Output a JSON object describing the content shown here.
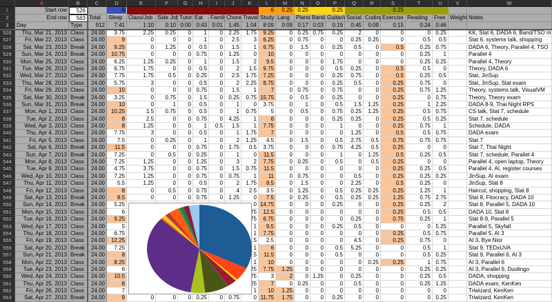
{
  "app": {
    "kind": "spreadsheet-time-log"
  },
  "column_letters": [
    "A",
    "B",
    "C",
    "D",
    "E",
    "F",
    "G",
    "H",
    "I",
    "J",
    "K",
    "L",
    "M",
    "N",
    "O",
    "P",
    "Q",
    "R",
    "S",
    "T",
    "U",
    "V",
    "W"
  ],
  "selected_column": "A",
  "selected_row_header": "1",
  "controls": {
    "start_row_label": "Start row",
    "start_row_value": "526",
    "end_row_label": "End row",
    "end_row_value": "563"
  },
  "thresholds": {
    "sleep": "8",
    "study": "6",
    "lang": "0.25",
    "piano": "0.25",
    "guitar": "0.25",
    "exercise": "0.25",
    "numeric": {
      "D": 8,
      "L": 6,
      "M": 0.25,
      "S": 0.25
    }
  },
  "band_colors": {
    "sleep_blue": "#3c50c0",
    "dark_red": "#8d0a0a",
    "orange": "#ff9d09",
    "yellow": "#ffd60a",
    "olive": "#9c9e06",
    "highlight_orange": "#f9c499"
  },
  "header_row": {
    "day": "Day",
    "type": "Type",
    "labels": [
      "Total",
      "Sleep",
      "Class/Job",
      "Side Job",
      "Tutor",
      "Eat",
      "Family",
      "Chores",
      "Travel",
      "Study",
      "Lang",
      "Piano",
      "Band",
      "Guitar/etc",
      "Social",
      "Coding",
      "Exercise",
      "Reading",
      "Free",
      "Weight",
      "Notes"
    ]
  },
  "averages_row": {
    "values": [
      "912",
      "7:41",
      "1:10",
      "0:10",
      "0:00",
      "0:43",
      "0:01",
      "1:45",
      "1:04",
      "8:09",
      "0:09",
      "0:17",
      "0:03",
      "0:19",
      "0:45",
      "0:09",
      "0:15",
      "0:24",
      "0:46",
      "",
      ""
    ]
  },
  "rows": [
    {
      "n": "526",
      "day": "Thu, Mar 21, 2013",
      "type": "Class",
      "v": [
        "24.00",
        "3.75",
        "2.25",
        "0.25",
        "0",
        "1",
        "0",
        "2.25",
        "1.75",
        "9.25",
        "0",
        "0.25",
        "0.75",
        "0.25",
        "2",
        "0",
        "0",
        "0",
        "0.25",
        ""
      ],
      "notes": "KK, Stat 6, DADA 6, Band/TSO mtg"
    },
    {
      "n": "527",
      "day": "Fri, Mar 22, 2013",
      "type": "Class",
      "v": [
        "24.00",
        "9",
        "0",
        "0",
        "0",
        "1",
        "0",
        "2.5",
        "3",
        "6.25",
        "0",
        "0.75",
        "0",
        "0",
        "0.25",
        "0.25",
        "0",
        "0.5",
        "0.5",
        ""
      ],
      "notes": "Stat 6, systems talk, shopping"
    },
    {
      "n": "528",
      "day": "Sat, Mar 23, 2013",
      "type": "Break",
      "v": [
        "24.00",
        "9.25",
        "0",
        "1.25",
        "0",
        "0.5",
        "0",
        "1.5",
        "1",
        "6.75",
        "0",
        "1.5",
        "0",
        "0.25",
        "0.5",
        "0",
        "0.5",
        "0.25",
        "0.75",
        ""
      ],
      "notes": "DADA 6, Theory, Parallel 4, TSO"
    },
    {
      "n": "529",
      "day": "Sun, Mar 24, 2013",
      "type": "Break",
      "v": [
        "24.00",
        "10.75",
        "0",
        "0",
        "0",
        "0.75",
        "0",
        "1.25",
        "0",
        "10",
        "0",
        "0",
        "0",
        "0",
        "0",
        "0",
        "0",
        "0.25",
        "1",
        ""
      ],
      "notes": "Parallel 4"
    },
    {
      "n": "530",
      "day": "Mon, Mar 25, 2013",
      "type": "Class",
      "v": [
        "24.00",
        "6.25",
        "1.25",
        "0.25",
        "0",
        "1",
        "0",
        "1.5",
        "2",
        "9.5",
        "0",
        "0",
        "0",
        "1.75",
        "0",
        "0",
        "0",
        "0.25",
        "0.25",
        ""
      ],
      "notes": "Parallel 4, Theory"
    },
    {
      "n": "531",
      "day": "Tue, Mar 26, 2013",
      "type": "Class",
      "v": [
        "24.00",
        "6.75",
        "1.75",
        "0",
        "0",
        "0.5",
        "0",
        "2",
        "1.5",
        "9.75",
        "0",
        "0",
        "0",
        "0.5",
        "0.25",
        "0",
        "0.5",
        "0.5",
        "0",
        ""
      ],
      "notes": "Theory, DADA 6"
    },
    {
      "n": "532",
      "day": "Wed, Mar 27, 2013",
      "type": "Class",
      "v": [
        "24.00",
        "7.75",
        "1.75",
        "0.5",
        "0",
        "0.25",
        "0",
        "2.5",
        "1.75",
        "7.25",
        "0",
        "0",
        "0",
        "0.25",
        "0.75",
        "0",
        "0.5",
        "0.25",
        "0.5",
        ""
      ],
      "notes": "Stat, JinSup"
    },
    {
      "n": "533",
      "day": "Thu, Mar 28, 2013",
      "type": "Class",
      "v": [
        "24.00",
        "5.75",
        "3",
        "0",
        "0",
        "0.5",
        "0",
        "2",
        "2.25",
        "8.75",
        "0",
        "0",
        "0",
        "0.25",
        "0.5",
        "0",
        "0.25",
        "0.75",
        "0",
        ""
      ],
      "notes": "Stat, JinSup, Stat exam"
    },
    {
      "n": "534",
      "day": "Fri, Mar 29, 2013",
      "type": "Class",
      "v": [
        "24.00",
        "10",
        "0",
        "0",
        "0",
        "0.75",
        "0",
        "1.5",
        "1",
        "7",
        "0",
        "0.75",
        "0",
        "0.75",
        "0",
        "0",
        "0.25",
        "0.75",
        "1.25",
        ""
      ],
      "notes": "Theory, systems talk, VisualVM"
    },
    {
      "n": "535",
      "day": "Sat, Mar 30, 2013",
      "type": "Break",
      "v": [
        "24.00",
        "3.25",
        "0",
        "0.75",
        "0",
        "1.5",
        "0",
        "0.25",
        "0.75",
        "15.75",
        "0",
        "0.5",
        "0",
        "0.25",
        "0",
        "0",
        "0.25",
        "0",
        "0.75",
        ""
      ],
      "notes": "Theory, Theory exam"
    },
    {
      "n": "536",
      "day": "Sun, Mar 31, 2013",
      "type": "Break",
      "v": [
        "24.00",
        "10",
        "0",
        "1",
        "0",
        "0.5",
        "0",
        "1",
        "0",
        "3.75",
        "0",
        "1",
        "0",
        "0.5",
        "1.5",
        "1.25",
        "0.25",
        "1",
        "2.25",
        ""
      ],
      "notes": "DADA 8-9, Thai Night RPS"
    },
    {
      "n": "537",
      "day": "Mon, Apr 1, 2013",
      "type": "Class",
      "v": [
        "24.00",
        "10.25",
        "1.5",
        "0.75",
        "0",
        "0.5",
        "0",
        "1",
        "0.75",
        "5",
        "0",
        "0.5",
        "0",
        "0.75",
        "0.25",
        "1.25",
        "0.25",
        "0.5",
        "0.75",
        ""
      ],
      "notes": "CS talk, Stat 7, schedule"
    },
    {
      "n": "538",
      "day": "Tue, Apr 2, 2013",
      "type": "Class",
      "v": [
        "24.00",
        "8",
        "2.5",
        "0",
        "0",
        "0.75",
        "0",
        "4.25",
        "1",
        "6",
        "0",
        "0",
        "0",
        "0.25",
        "0.25",
        "0",
        "0.25",
        "0.5",
        "0.25",
        ""
      ],
      "notes": "Stat 7, schedule"
    },
    {
      "n": "539",
      "day": "Wed, Apr 3, 2013",
      "type": "Class",
      "v": [
        "24.00",
        "8",
        "1.25",
        "0",
        "0",
        "1",
        "0.5",
        "1.5",
        "1",
        "7.75",
        "0",
        "0",
        "0",
        "1",
        "0",
        "0",
        "0.25",
        "0.75",
        "1",
        ""
      ],
      "notes": "Schedule, DADA"
    },
    {
      "n": "540",
      "day": "Thu, Apr 4, 2013",
      "type": "Class",
      "v": [
        "24.00",
        "7.75",
        "3",
        "0",
        "0",
        "0.5",
        "0",
        "1",
        "1.75",
        "7",
        "0",
        "0",
        "0",
        "0",
        "1.25",
        "0",
        "0.5",
        "0.5",
        "0.75",
        ""
      ],
      "notes": "DADA exam"
    },
    {
      "n": "541",
      "day": "Fri, Apr 5, 2013",
      "type": "Class",
      "v": [
        "24.00",
        "7.5",
        "0",
        "0.25",
        "0",
        "1",
        "0",
        "2",
        "1.25",
        "4.5",
        "0",
        "1.5",
        "0",
        "0.5",
        "2.75",
        "0.5",
        "0.75",
        "0.75",
        "0.75",
        ""
      ],
      "notes": "Stat 7"
    },
    {
      "n": "542",
      "day": "Sat, Apr 6, 2013",
      "type": "Break",
      "v": [
        "24.00",
        "11.5",
        "0",
        "0",
        "0",
        "0.75",
        "0",
        "1.75",
        "0.5",
        "3.75",
        "0",
        "0",
        "0",
        "0.75",
        "4.25",
        "0.5",
        "0.25",
        "0",
        "0",
        ""
      ],
      "notes": "Stat 7, Thai Night"
    },
    {
      "n": "543",
      "day": "Sun, Apr 7, 2013",
      "type": "Break",
      "v": [
        "24.00",
        "7.25",
        "0",
        "0.5",
        "0",
        "0.25",
        "0",
        "1",
        "0",
        "11.5",
        "0",
        "0",
        "0",
        "1",
        "0",
        "1.25",
        "0.5",
        "0.25",
        "0.5",
        ""
      ],
      "notes": "Stat 7, schedule, Parallel 4"
    },
    {
      "n": "544",
      "day": "Mon, Apr 8, 2013",
      "type": "Class",
      "v": [
        "24.00",
        "7.25",
        "1.25",
        "0",
        "0",
        "1.25",
        "0",
        "3",
        "2",
        "7.75",
        "0",
        "0.25",
        "0",
        "0.5",
        "0",
        "0.5",
        "0.25",
        "0",
        "0",
        ""
      ],
      "notes": "Parallel 4, open laptop, Theory"
    },
    {
      "n": "545",
      "day": "Tue, Apr 9, 2013",
      "type": "Class",
      "v": [
        "24.00",
        "4.75",
        "3.75",
        "0",
        "0",
        "0.75",
        "0",
        "1.5",
        "0.75",
        "11.5",
        "0",
        "0",
        "0",
        "0",
        "0",
        "0",
        "0.25",
        "0.25",
        "0.5",
        ""
      ],
      "notes": "Parallel 4, AI, register courses"
    },
    {
      "n": "546",
      "day": "Wed, Apr 10, 2013",
      "type": "Class",
      "v": [
        "24.00",
        "7.25",
        "1.25",
        "0",
        "0",
        "0.75",
        "0",
        "0.75",
        "1",
        "11",
        "0",
        "0.75",
        "0",
        "0",
        "0.5",
        "0",
        "0.25",
        "0.25",
        "0.25",
        ""
      ],
      "notes": "JinSup, AI exam"
    },
    {
      "n": "547",
      "day": "Thu, Apr 11, 2013",
      "type": "Class",
      "v": [
        "24.00",
        "5.5",
        "1.25",
        "0",
        "0",
        "0.5",
        "0",
        "2",
        "1.75",
        "8.5",
        "0",
        "1.5",
        "0",
        "0",
        "2.25",
        "0",
        "0.5",
        "0.25",
        "0",
        ""
      ],
      "notes": "JinSup, Stat 8"
    },
    {
      "n": "548",
      "day": "Fri, Apr 12, 2013",
      "type": "Class",
      "v": [
        "24.00",
        "8",
        "0",
        "0.5",
        "0",
        "0.75",
        "0",
        "4",
        "2.5",
        "3.5",
        "0",
        "1.25",
        "0",
        "0.5",
        "0.25",
        "0.25",
        "0.25",
        "1.25",
        "1",
        ""
      ],
      "notes": "Haircut, shopping, Stat 8"
    },
    {
      "n": "549",
      "day": "Sat, Apr 13, 2013",
      "type": "Break",
      "v": [
        "24.00",
        "8.5",
        "0",
        "0",
        "0",
        "0.75",
        "0",
        "1.25",
        "0",
        "7.5",
        "0",
        "0.25",
        "0",
        "0.5",
        "0.25",
        "0.25",
        "1.25",
        "0.75",
        "2.75",
        ""
      ],
      "notes": "Stat 8, Fitocracy, DADA 10"
    },
    {
      "n": "550",
      "day": "Sun, Apr 14, 2013",
      "type": "Break",
      "v": [
        "24.00",
        "5.25",
        "",
        "",
        "",
        "",
        "",
        "",
        "0",
        "14.75",
        "0",
        "0",
        "0",
        "0.25",
        "0",
        "0",
        "0.25",
        "0.25",
        "2",
        ""
      ],
      "notes": "Stat 8, Parallel 5, DADA 10"
    },
    {
      "n": "551",
      "day": "Mon, Apr 15, 2013",
      "type": "Class",
      "v": [
        "24.00",
        "6",
        "",
        "",
        "",
        "",
        "",
        "",
        "0.75",
        "12.5",
        "0",
        "0",
        "0",
        "0",
        "0",
        "0",
        "0.25",
        "0.5",
        "0.5",
        ""
      ],
      "notes": "DADA 10, Stat 8"
    },
    {
      "n": "552",
      "day": "Tue, Apr 16, 2013",
      "type": "Class",
      "v": [
        "24.00",
        "9.25",
        "",
        "",
        "",
        "",
        "",
        "",
        "0.75",
        "6.75",
        "0",
        "0",
        "0",
        "0",
        "0.25",
        "0",
        "0.75",
        "0.25",
        "1",
        ""
      ],
      "notes": "Stat 8-9, Parallel 5"
    },
    {
      "n": "553",
      "day": "Wed, Apr 17, 2013",
      "type": "Class",
      "v": [
        "24.00",
        "5",
        "",
        "",
        "",
        "",
        "",
        "",
        "1",
        "9.5",
        "0",
        "0",
        "0",
        "0.25",
        "0.5",
        "0",
        "0",
        "0",
        "5.25",
        ""
      ],
      "notes": "Parallel 5, Skyfall"
    },
    {
      "n": "554",
      "day": "Thu, Apr 18, 2013",
      "type": "Class",
      "v": [
        "24.00",
        "6.75",
        "",
        "",
        "",
        "",
        "",
        "",
        "1",
        "7.75",
        "0",
        "0",
        "0",
        "0",
        "0",
        "0",
        "0.25",
        "0.5",
        "0.75",
        ""
      ],
      "notes": "Parallel 5, AI 3"
    },
    {
      "n": "555",
      "day": "Fri, Apr 19, 2013",
      "type": "Class",
      "v": [
        "24.00",
        "12.25",
        "",
        "",
        "",
        "",
        "",
        "",
        "1.5",
        "2.5",
        "0",
        "0",
        "0",
        "0",
        "4.5",
        "0",
        "0.25",
        "0.75",
        "0",
        ""
      ],
      "notes": "AI 3, Bye Nior"
    },
    {
      "n": "556",
      "day": "Sat, Apr 20, 2013",
      "type": "Break",
      "v": [
        "24.00",
        "7.25",
        "",
        "",
        "",
        "",
        "",
        "",
        "1",
        "6",
        "0",
        "0",
        "0",
        "0.5",
        "5.25",
        "0",
        "0",
        "0.5",
        "1",
        ""
      ],
      "notes": "Stat 9, TEDxUVA"
    },
    {
      "n": "557",
      "day": "Sun, Apr 21, 2013",
      "type": "Break",
      "v": [
        "24.00",
        "8",
        "",
        "",
        "",
        "",
        "",
        "",
        "1.5",
        "11.5",
        "0",
        "0",
        "0",
        "0.5",
        "0",
        "0",
        "0",
        "0.5",
        "0.25",
        ""
      ],
      "notes": "Stat 9, Parallel 6, AI 3"
    },
    {
      "n": "558",
      "day": "Mon, Apr 22, 2013",
      "type": "Class",
      "v": [
        "24.00",
        "8.25",
        "",
        "",
        "",
        "",
        "",
        "",
        "1",
        "10",
        "0",
        "0",
        "0",
        "0",
        "0",
        "0.25",
        "0.25",
        "1",
        "0.75",
        ""
      ],
      "notes": "AI 3, Parallel 6"
    },
    {
      "n": "559",
      "day": "Tue, Apr 23, 2013",
      "type": "Class",
      "v": [
        "24.00",
        "6",
        "",
        "",
        "",
        "",
        "",
        "",
        "0.25",
        "7.75",
        "1.25",
        "0",
        "0",
        "0",
        "0",
        "0",
        "0",
        "0.25",
        "0.25",
        ""
      ],
      "notes": "AI 3, Parallel 6, Duolingo"
    },
    {
      "n": "560",
      "day": "Wed, Apr 24, 2013",
      "type": "Class",
      "v": [
        "24.00",
        "10.5",
        "",
        "",
        "",
        "",
        "",
        "",
        "0.75",
        "3",
        "2",
        "0",
        "1.25",
        "0",
        "0.25",
        "0",
        "0",
        "0.25",
        "0.5",
        ""
      ],
      "notes": "DADA, shopping"
    },
    {
      "n": "561",
      "day": "Thu, Apr 25, 2013",
      "type": "Class",
      "v": [
        "24.00",
        "8",
        "",
        "",
        "",
        "",
        "",
        "",
        "0.25",
        "7",
        "0",
        "0.25",
        "0",
        "0",
        "0.5",
        "0",
        "0",
        "0.25",
        "1.25",
        ""
      ],
      "notes": "DADA exam, KenKen"
    },
    {
      "n": "562",
      "day": "Fri, Apr 26, 2013",
      "type": "Class",
      "v": [
        "24.00",
        "7",
        "",
        "",
        "",
        "",
        "",
        "",
        "1",
        "10",
        "1.25",
        "0",
        "0",
        "0",
        "0",
        "0",
        "0",
        "0",
        "0",
        ""
      ],
      "notes": "Triwizard, KenKen"
    },
    {
      "n": "563",
      "day": "Sat, Apr 27, 2013",
      "type": "Break",
      "v": [
        "24.00",
        "9",
        "0",
        "0",
        "0",
        "0.25",
        "0",
        "0.75",
        "0",
        "11.75",
        "1.75",
        "0",
        "0",
        "0.25",
        "0",
        "0",
        "0",
        "0",
        "0.25",
        ""
      ],
      "notes": "Triwizard, KenKen"
    }
  ],
  "chart_data": {
    "type": "pie",
    "title": "",
    "legend": "none",
    "categories": [
      "Sleep",
      "Class/Job",
      "Side Job",
      "Tutor",
      "Eat",
      "Family",
      "Chores",
      "Travel",
      "Study",
      "Lang",
      "Piano",
      "Band",
      "Guitar/etc",
      "Social",
      "Coding",
      "Exercise",
      "Reading",
      "Free"
    ],
    "values_hhmm": [
      "7:41",
      "1:10",
      "0:10",
      "0:00",
      "0:43",
      "0:01",
      "1:45",
      "1:04",
      "8:09",
      "0:09",
      "0:17",
      "0:03",
      "0:19",
      "0:45",
      "0:09",
      "0:15",
      "0:24",
      "0:46"
    ],
    "values_hours": [
      7.683,
      1.167,
      0.167,
      0,
      0.717,
      0.017,
      1.75,
      1.067,
      8.15,
      0.15,
      0.283,
      0.05,
      0.317,
      0.75,
      0.15,
      0.25,
      0.4,
      0.767
    ],
    "colors": [
      "#1e5c96",
      "#ff4517",
      "#ffd400",
      "#c0c0c0",
      "#9c1b33",
      "#0e8040",
      "#4a5616",
      "#a8c21f",
      "#5d2d87",
      "#ff6a00",
      "#ffc90b",
      "#2f5fa8",
      "#d23227",
      "#ff5e14",
      "#2f8f3c",
      "#1e7b4f",
      "#8e1c3c",
      "#9cc9ef"
    ]
  }
}
